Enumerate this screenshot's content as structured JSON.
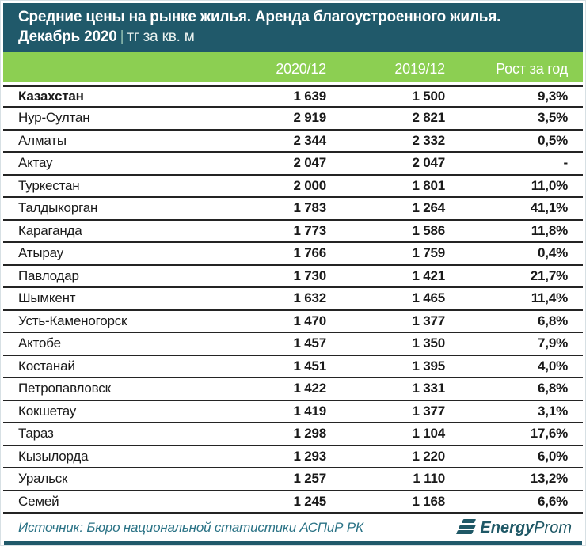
{
  "title": {
    "line1": "Средние цены на рынке жилья. Аренда благоустроенного жилья.",
    "line2_bold": "Декабрь 2020",
    "separator": "|",
    "line2_unit": "тг за кв. м"
  },
  "chart_data": {
    "type": "table",
    "title": "Средние цены на рынке жилья. Аренда благоустроенного жилья. Декабрь 2020, тг за кв. м",
    "columns": [
      "2020/12",
      "2019/12",
      "Рост за год"
    ],
    "rows": [
      {
        "region": "Казахстан",
        "v2020": "1 639",
        "v2019": "1 500",
        "growth": "9,3%",
        "bold": true
      },
      {
        "region": "Нур-Султан",
        "v2020": "2 919",
        "v2019": "2 821",
        "growth": "3,5%",
        "bold": false
      },
      {
        "region": "Алматы",
        "v2020": "2 344",
        "v2019": "2 332",
        "growth": "0,5%",
        "bold": false
      },
      {
        "region": "Актау",
        "v2020": "2 047",
        "v2019": "2 047",
        "growth": "-",
        "bold": false
      },
      {
        "region": "Туркестан",
        "v2020": "2 000",
        "v2019": "1 801",
        "growth": "11,0%",
        "bold": false
      },
      {
        "region": "Талдыкорган",
        "v2020": "1 783",
        "v2019": "1 264",
        "growth": "41,1%",
        "bold": false
      },
      {
        "region": "Караганда",
        "v2020": "1 773",
        "v2019": "1 586",
        "growth": "11,8%",
        "bold": false
      },
      {
        "region": "Атырау",
        "v2020": "1 766",
        "v2019": "1 759",
        "growth": "0,4%",
        "bold": false
      },
      {
        "region": "Павлодар",
        "v2020": "1 730",
        "v2019": "1 421",
        "growth": "21,7%",
        "bold": false
      },
      {
        "region": "Шымкент",
        "v2020": "1 632",
        "v2019": "1 465",
        "growth": "11,4%",
        "bold": false
      },
      {
        "region": "Усть-Каменогорск",
        "v2020": "1 470",
        "v2019": "1 377",
        "growth": "6,8%",
        "bold": false
      },
      {
        "region": "Актобе",
        "v2020": "1 457",
        "v2019": "1 350",
        "growth": "7,9%",
        "bold": false
      },
      {
        "region": "Костанай",
        "v2020": "1 451",
        "v2019": "1 395",
        "growth": "4,0%",
        "bold": false
      },
      {
        "region": "Петропавловск",
        "v2020": "1 422",
        "v2019": "1 331",
        "growth": "6,8%",
        "bold": false
      },
      {
        "region": "Кокшетау",
        "v2020": "1 419",
        "v2019": "1 377",
        "growth": "3,1%",
        "bold": false
      },
      {
        "region": "Тараз",
        "v2020": "1 298",
        "v2019": "1 104",
        "growth": "17,6%",
        "bold": false
      },
      {
        "region": "Кызылорда",
        "v2020": "1 293",
        "v2019": "1 220",
        "growth": "6,0%",
        "bold": false
      },
      {
        "region": "Уральск",
        "v2020": "1 257",
        "v2019": "1 110",
        "growth": "13,2%",
        "bold": false
      },
      {
        "region": "Семей",
        "v2020": "1 245",
        "v2019": "1 168",
        "growth": "6,6%",
        "bold": false
      }
    ]
  },
  "footer": {
    "source": "Источник: Бюро национальной статистики АСПиР РК",
    "logo_bold": "Energy",
    "logo_light": "Prom"
  },
  "colors": {
    "header_teal": "#20596a",
    "band_green": "#8ccf52",
    "row_text": "#1a1a1a",
    "row_border": "#242424",
    "source_teal": "#2b7386",
    "logo_teal": "#1f5866"
  }
}
